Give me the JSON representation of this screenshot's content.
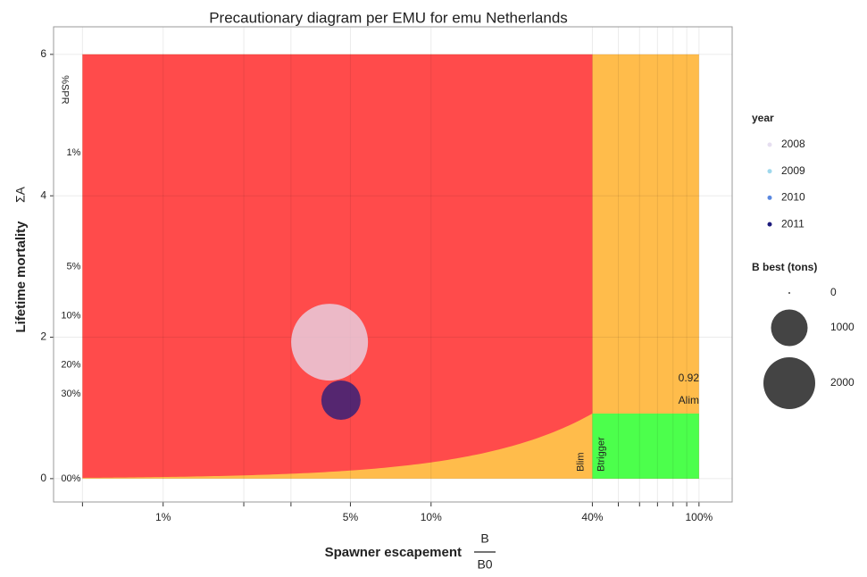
{
  "chart_data": {
    "type": "precautionary",
    "title": "Precautionary diagram per EMU for emu Netherlands",
    "x_label": "Spawner escapement",
    "x_label_num": "B",
    "x_label_den": "B0",
    "y_label": "Lifetime mortality",
    "y_label_symbol": "ΣA",
    "log_x": true,
    "grid": true,
    "xlim": [
      0.0039,
      1.33
    ],
    "ylim": [
      -0.33,
      6.39
    ],
    "xticks": [
      {
        "value": 0.01,
        "label": "1%"
      },
      {
        "value": 0.05,
        "label": "5%"
      },
      {
        "value": 0.1,
        "label": "10%"
      },
      {
        "value": 0.4,
        "label": "40%"
      },
      {
        "value": 1,
        "label": "100%"
      }
    ],
    "xminor_ticks": [
      0.005,
      0.02,
      0.03,
      0.5,
      0.6,
      0.7,
      0.8,
      0.9
    ],
    "yticks": [
      0,
      2,
      4,
      6
    ],
    "zones": {
      "b_min": 0.005,
      "b_trigger": 0.4,
      "b_max": 1,
      "a_max": 6,
      "a_lim": 0.92,
      "colors": {
        "red": "#ff4b4b",
        "orange": "#ffbc4b",
        "green": "#4cff4c"
      }
    },
    "zone_labels": {
      "blim": "Blim",
      "btrigger": "Btrigger",
      "alim": "Alim"
    },
    "spr_title": "%SPR",
    "spr_labels": [
      {
        "value": 4.61,
        "label": "1%"
      },
      {
        "value": 3.0,
        "label": "5%"
      },
      {
        "value": 2.3,
        "label": "10%"
      },
      {
        "value": 1.61,
        "label": "20%"
      },
      {
        "value": 1.2,
        "label": "30%"
      },
      {
        "value": 0,
        "label": "00%"
      }
    ],
    "legend_title": "year",
    "series": [
      {
        "name": "2008",
        "color": "#e6def0",
        "b": [
          0.0418
        ],
        "a": [
          1.93
        ],
        "size": [
          4400
        ]
      },
      {
        "name": "2009",
        "color": "#9fd8ec",
        "b": [],
        "a": [],
        "size": []
      },
      {
        "name": "2010",
        "color": "#5a88e0",
        "b": [],
        "a": [],
        "size": []
      },
      {
        "name": "2011",
        "color": "#1c1a7c",
        "b": [
          0.0461
        ],
        "a": [
          1.11
        ],
        "size": [
          1150
        ]
      }
    ],
    "size_legend_title": "B best (tons)",
    "size_legend": [
      0,
      1000,
      2000
    ],
    "size_max": 2000
  }
}
